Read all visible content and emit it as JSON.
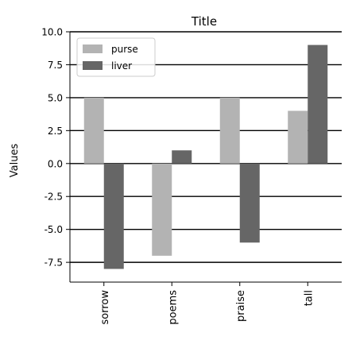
{
  "chart_data": {
    "type": "bar",
    "title": "Title",
    "xlabel": "",
    "ylabel": "Values",
    "categories": [
      "sorrow",
      "poems",
      "praise",
      "tall"
    ],
    "series": [
      {
        "name": "purse",
        "values": [
          5,
          -7,
          5,
          4
        ],
        "color": "#b3b3b3"
      },
      {
        "name": "liver",
        "values": [
          -8,
          1,
          -6,
          9
        ],
        "color": "#666666"
      }
    ],
    "ylim": [
      -9,
      10
    ],
    "yticks": [
      "-7.5",
      "-5.0",
      "-2.5",
      "0.0",
      "2.5",
      "5.0",
      "7.5",
      "10.0"
    ],
    "grid": true,
    "legend": "top-left"
  }
}
